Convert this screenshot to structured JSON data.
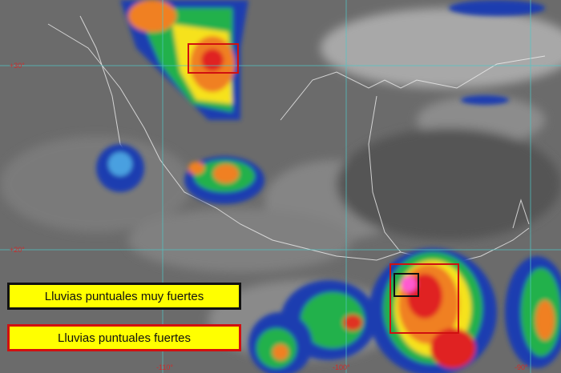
{
  "legend": {
    "very_strong": {
      "label": "Lluvias puntuales muy fuertes",
      "border_color": "#111111"
    },
    "strong": {
      "label": "Lluvias puntuales fuertes",
      "border_color": "#d01010"
    }
  },
  "grid_labels": {
    "lat_30": "+30°",
    "lat_20": "+20°",
    "lon_110": "-110°",
    "lon_100": "-100°",
    "lon_90": "-90°"
  },
  "colors": {
    "legend_fill": "#ffff00",
    "grid": "#4fc8c8",
    "label": "#e02020"
  }
}
